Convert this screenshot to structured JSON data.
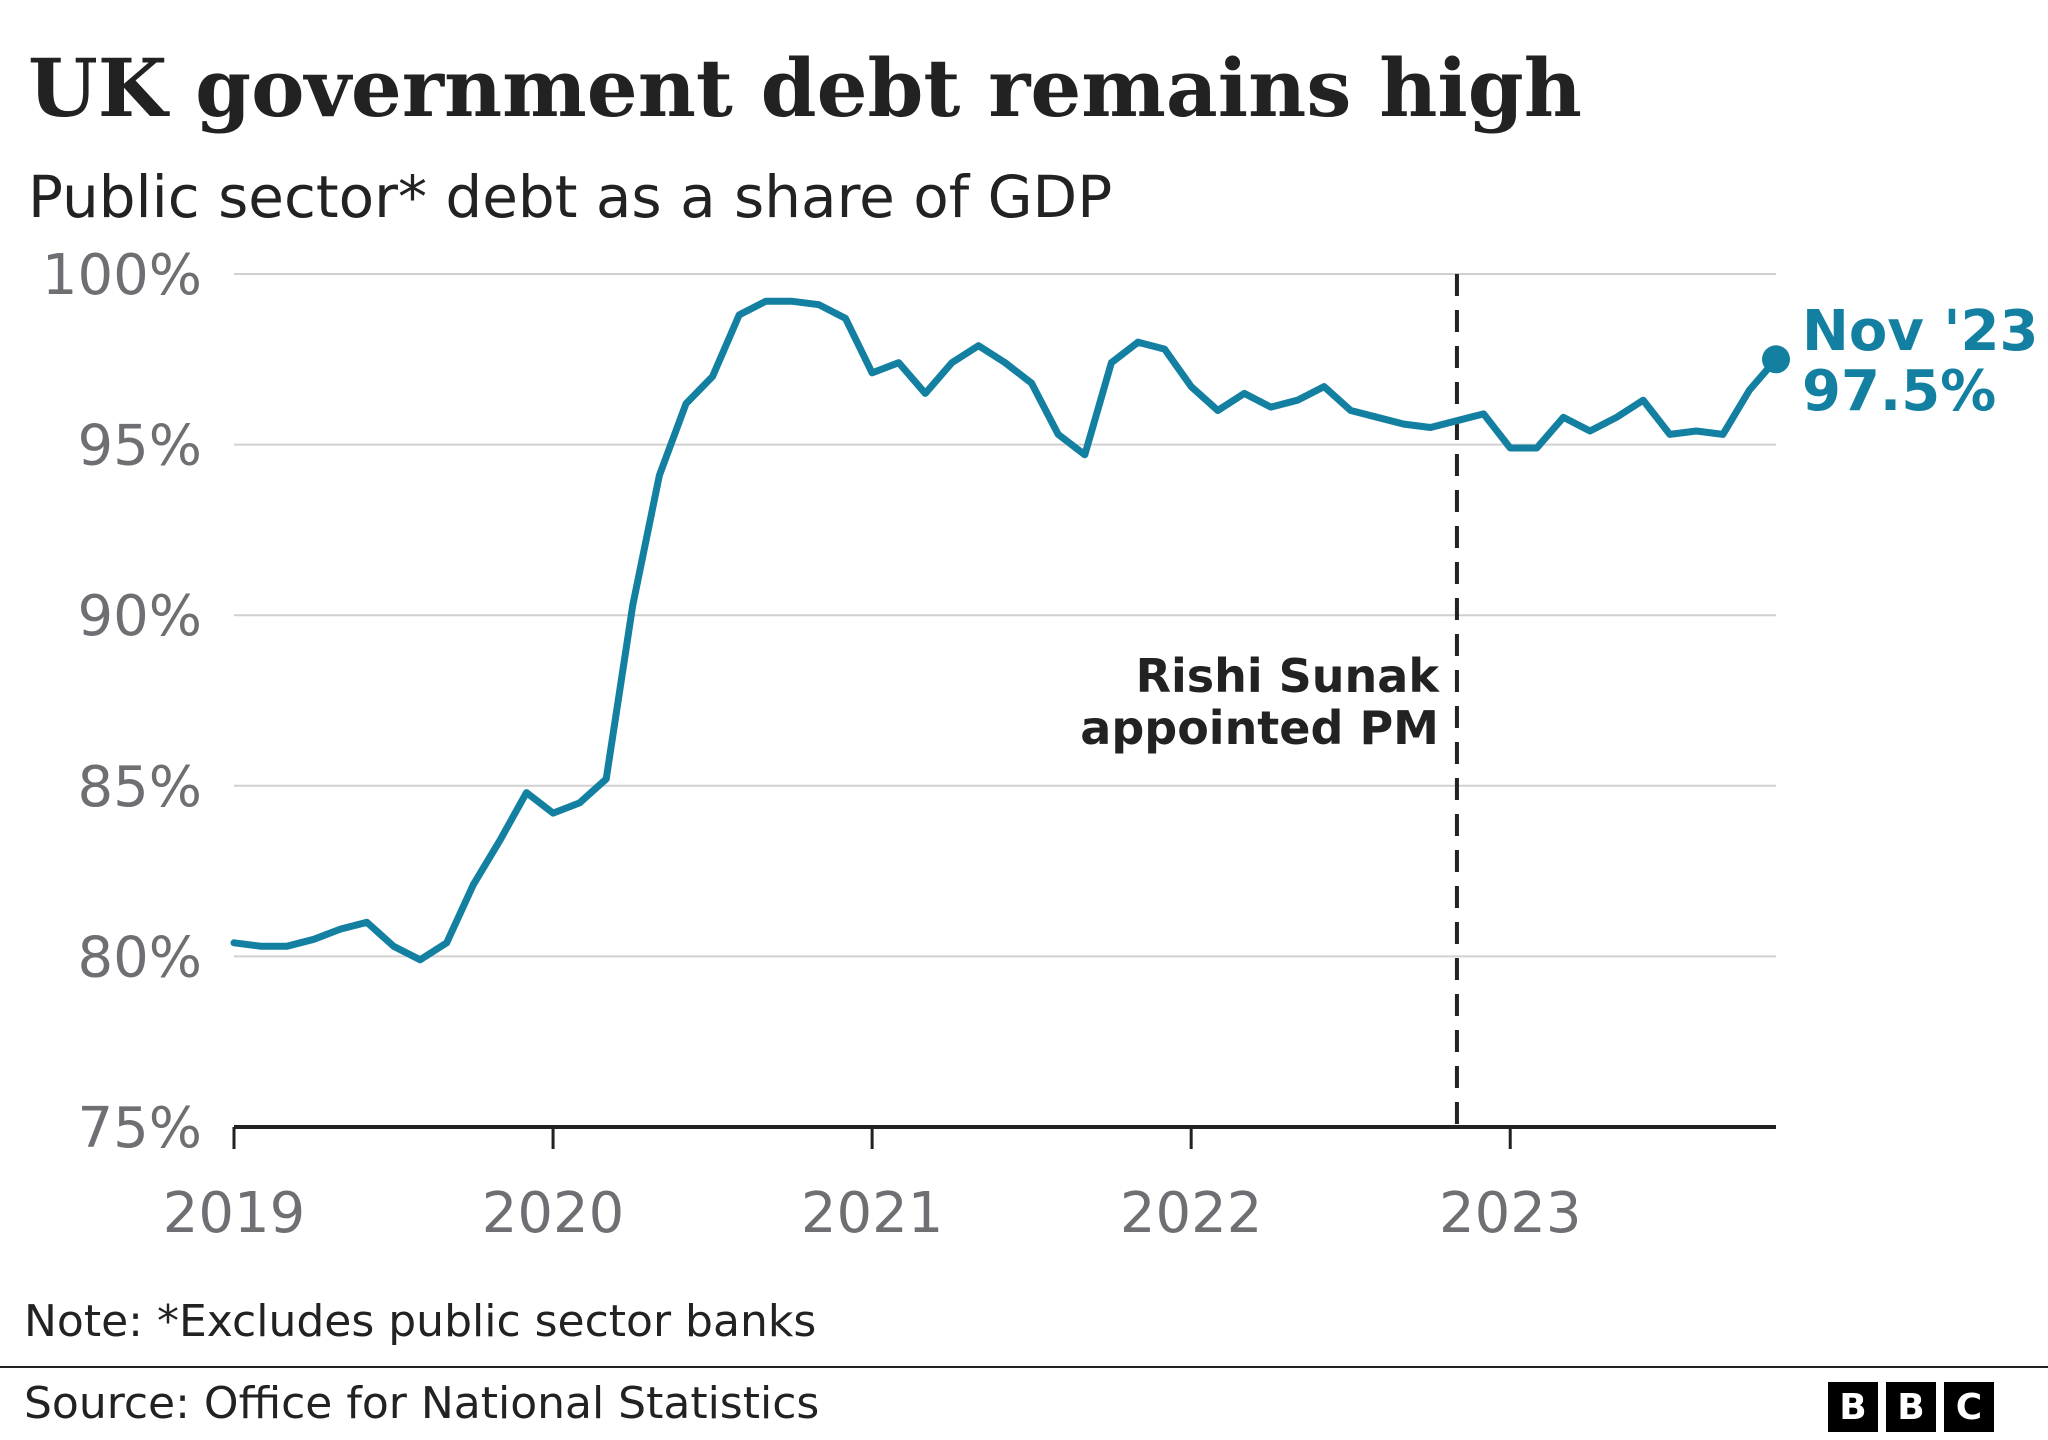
{
  "title": "UK government debt remains high",
  "subtitle": "Public sector* debt as a share of GDP",
  "note": "Note: *Excludes public sector banks",
  "source": "Source: Office for National Statistics",
  "logo": [
    "B",
    "B",
    "C"
  ],
  "colors": {
    "line": "#1380a1",
    "grid": "#d0d0d0",
    "axis": "#222222",
    "tick": "#6e6e73"
  },
  "chart_data": {
    "type": "line",
    "grid": true,
    "ylim": [
      75,
      100
    ],
    "xlim": [
      2019.0,
      2023.833
    ],
    "y_ticks": [
      {
        "value": 100,
        "label": "100%"
      },
      {
        "value": 95,
        "label": "95%"
      },
      {
        "value": 90,
        "label": "90%"
      },
      {
        "value": 85,
        "label": "85%"
      },
      {
        "value": 80,
        "label": "80%"
      },
      {
        "value": 75,
        "label": "75%"
      }
    ],
    "x_ticks": [
      {
        "value": 2019,
        "label": "2019"
      },
      {
        "value": 2020,
        "label": "2020"
      },
      {
        "value": 2021,
        "label": "2021"
      },
      {
        "value": 2022,
        "label": "2022"
      },
      {
        "value": 2023,
        "label": "2023"
      }
    ],
    "series": [
      {
        "start": "2019-01",
        "values": [
          80.4,
          80.3,
          80.3,
          80.5,
          80.8,
          81.0,
          80.3,
          79.9,
          80.4,
          82.1,
          83.4,
          84.8,
          84.2,
          84.5,
          85.2,
          90.3,
          94.1,
          96.2,
          97.0,
          98.8,
          99.2,
          99.2,
          99.1,
          98.7,
          97.1,
          97.4,
          96.5,
          97.4,
          97.9,
          97.4,
          96.8,
          95.3,
          94.7,
          97.4,
          98.0,
          97.8,
          96.7,
          96.0,
          96.5,
          96.1,
          96.3,
          96.7,
          96.0,
          95.8,
          95.6,
          95.5,
          95.7,
          95.9,
          94.9,
          94.9,
          95.8,
          95.4,
          95.8,
          96.3,
          95.3,
          95.4,
          95.3,
          96.6,
          97.5
        ]
      }
    ],
    "annotations": [
      {
        "x": 2022.833,
        "label_lines": [
          "Rishi Sunak",
          "appointed PM"
        ],
        "style": "dashed-vertical"
      }
    ],
    "end_label": {
      "lines": [
        "Nov '23",
        "97.5%"
      ],
      "x": 2023.833,
      "y": 97.5
    }
  }
}
